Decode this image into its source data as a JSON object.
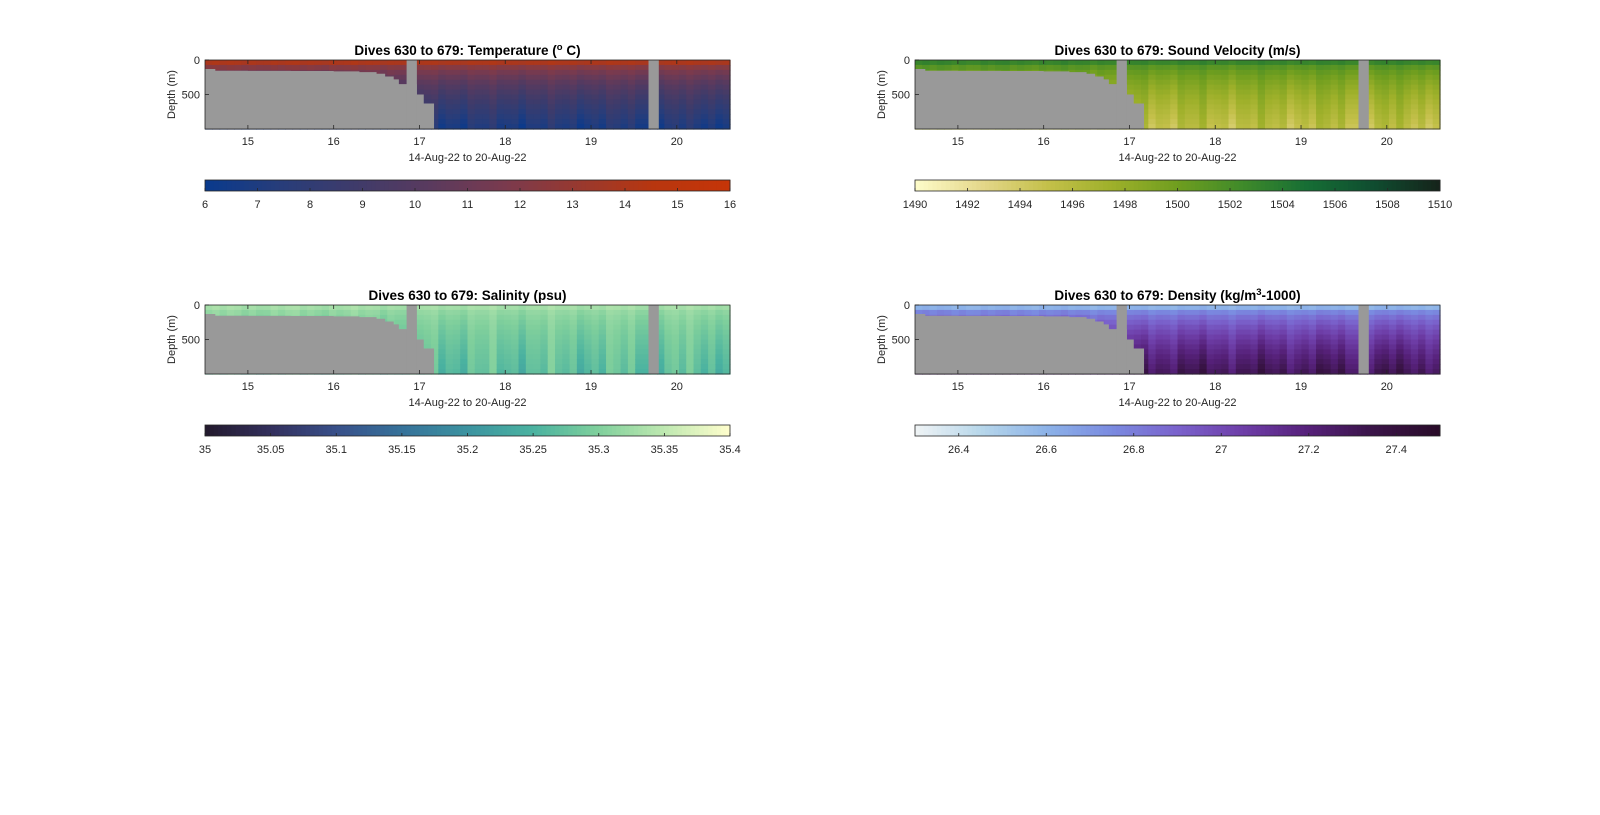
{
  "chart_data": [
    {
      "type": "heatmap",
      "title_main": "Dives 630 to 679: Temperature (",
      "title_sup": "o",
      "title_end": " C)",
      "ylabel": "Depth (m)",
      "xlabel": "14-Aug-22 to 20-Aug-22",
      "x_ticks": [
        "15",
        "16",
        "17",
        "18",
        "19",
        "20"
      ],
      "y_ticks": [
        "0",
        "500"
      ],
      "xlim": [
        14.5,
        20.62
      ],
      "ylim": [
        0,
        1000
      ],
      "colorbar_ticks": [
        "6",
        "7",
        "8",
        "9",
        "10",
        "11",
        "12",
        "13",
        "14",
        "15",
        "16"
      ],
      "colorbar_range": [
        6,
        16
      ],
      "colormap": [
        "#0a3a8c",
        "#283d7a",
        "#3f3b6a",
        "#5a3a5e",
        "#7a3a4e",
        "#98392f",
        "#b8360f",
        "#c53508"
      ],
      "surface_value": 14,
      "deep_value": 7,
      "no_data_color": "#999999",
      "gaps": [
        [
          16.85,
          16.97
        ],
        [
          19.67,
          19.79
        ]
      ],
      "seafloor": [
        [
          14.5,
          130
        ],
        [
          14.62,
          155
        ],
        [
          15.0,
          158
        ],
        [
          15.5,
          160
        ],
        [
          16.0,
          165
        ],
        [
          16.3,
          175
        ],
        [
          16.5,
          200
        ],
        [
          16.6,
          240
        ],
        [
          16.7,
          280
        ],
        [
          16.76,
          350
        ],
        [
          16.85,
          350
        ],
        [
          16.97,
          500
        ],
        [
          17.05,
          630
        ],
        [
          17.17,
          1000
        ]
      ]
    },
    {
      "type": "heatmap",
      "title_main": "Dives 630 to 679: Sound Velocity (m/s)",
      "title_sup": "",
      "title_end": "",
      "ylabel": "Depth (m)",
      "xlabel": "14-Aug-22 to 20-Aug-22",
      "x_ticks": [
        "15",
        "16",
        "17",
        "18",
        "19",
        "20"
      ],
      "y_ticks": [
        "0",
        "500"
      ],
      "xlim": [
        14.5,
        20.62
      ],
      "ylim": [
        0,
        1000
      ],
      "colorbar_ticks": [
        "1490",
        "1492",
        "1494",
        "1496",
        "1498",
        "1500",
        "1502",
        "1504",
        "1506",
        "1508",
        "1510"
      ],
      "colorbar_range": [
        1490,
        1510
      ],
      "colormap": [
        "#fdfbc8",
        "#e4d78a",
        "#c4c04a",
        "#9eb02a",
        "#6f9e1f",
        "#3f8a2a",
        "#166e35",
        "#0f4d30",
        "#15241b"
      ],
      "surface_value": 1503,
      "deep_value": 1495.5,
      "no_data_color": "#999999",
      "gaps": [
        [
          16.85,
          16.97
        ],
        [
          19.67,
          19.79
        ]
      ],
      "seafloor": [
        [
          14.5,
          130
        ],
        [
          14.62,
          155
        ],
        [
          15.0,
          158
        ],
        [
          15.5,
          160
        ],
        [
          16.0,
          165
        ],
        [
          16.3,
          175
        ],
        [
          16.5,
          200
        ],
        [
          16.6,
          240
        ],
        [
          16.7,
          280
        ],
        [
          16.76,
          350
        ],
        [
          16.85,
          350
        ],
        [
          16.97,
          500
        ],
        [
          17.05,
          630
        ],
        [
          17.17,
          1000
        ]
      ]
    },
    {
      "type": "heatmap",
      "title_main": "Dives 630 to 679: Salinity (psu)",
      "title_sup": "",
      "title_end": "",
      "ylabel": "Depth (m)",
      "xlabel": "14-Aug-22 to 20-Aug-22",
      "x_ticks": [
        "15",
        "16",
        "17",
        "18",
        "19",
        "20"
      ],
      "y_ticks": [
        "0",
        "500"
      ],
      "xlim": [
        14.5,
        20.62
      ],
      "ylim": [
        0,
        1000
      ],
      "colorbar_ticks": [
        "35",
        "35.05",
        "35.1",
        "35.15",
        "35.2",
        "35.25",
        "35.3",
        "35.35",
        "35.4"
      ],
      "colorbar_range": [
        35,
        35.4
      ],
      "colormap": [
        "#231a2e",
        "#33305e",
        "#38508a",
        "#36729a",
        "#3c93a0",
        "#4ab2a0",
        "#7fcf9c",
        "#bde8b0",
        "#fdfdcc"
      ],
      "surface_value": 35.33,
      "deep_value": 35.27,
      "no_data_color": "#999999",
      "gaps": [
        [
          16.85,
          16.97
        ],
        [
          19.67,
          19.79
        ]
      ],
      "seafloor": [
        [
          14.5,
          130
        ],
        [
          14.62,
          155
        ],
        [
          15.0,
          158
        ],
        [
          15.5,
          160
        ],
        [
          16.0,
          165
        ],
        [
          16.3,
          175
        ],
        [
          16.5,
          200
        ],
        [
          16.6,
          240
        ],
        [
          16.7,
          280
        ],
        [
          16.76,
          350
        ],
        [
          16.85,
          350
        ],
        [
          16.97,
          500
        ],
        [
          17.05,
          630
        ],
        [
          17.17,
          1000
        ]
      ]
    },
    {
      "type": "heatmap",
      "title_main": "Dives 630 to 679: Density (kg/m",
      "title_sup": "3",
      "title_end": "-1000)",
      "ylabel": "Depth (m)",
      "xlabel": "14-Aug-22 to 20-Aug-22",
      "x_ticks": [
        "15",
        "16",
        "17",
        "18",
        "19",
        "20"
      ],
      "y_ticks": [
        "0",
        "500"
      ],
      "xlim": [
        14.5,
        20.62
      ],
      "ylim": [
        0,
        1000
      ],
      "colorbar_ticks": [
        "26.4",
        "26.6",
        "26.8",
        "27",
        "27.2",
        "27.4"
      ],
      "colorbar_range": [
        26.3,
        27.5
      ],
      "colormap": [
        "#eef3f5",
        "#b6d6ea",
        "#8cb2e8",
        "#7a8ae0",
        "#7a62cc",
        "#6e3ea8",
        "#56217a",
        "#3a1448",
        "#2a0c2a"
      ],
      "surface_value": 26.6,
      "deep_value": 27.3,
      "no_data_color": "#999999",
      "gaps": [
        [
          16.85,
          16.97
        ],
        [
          19.67,
          19.79
        ]
      ],
      "seafloor": [
        [
          14.5,
          130
        ],
        [
          14.62,
          155
        ],
        [
          15.0,
          158
        ],
        [
          15.5,
          160
        ],
        [
          16.0,
          165
        ],
        [
          16.3,
          175
        ],
        [
          16.5,
          200
        ],
        [
          16.6,
          240
        ],
        [
          16.7,
          280
        ],
        [
          16.76,
          350
        ],
        [
          16.85,
          350
        ],
        [
          16.97,
          500
        ],
        [
          17.05,
          630
        ],
        [
          17.17,
          1000
        ]
      ]
    }
  ]
}
